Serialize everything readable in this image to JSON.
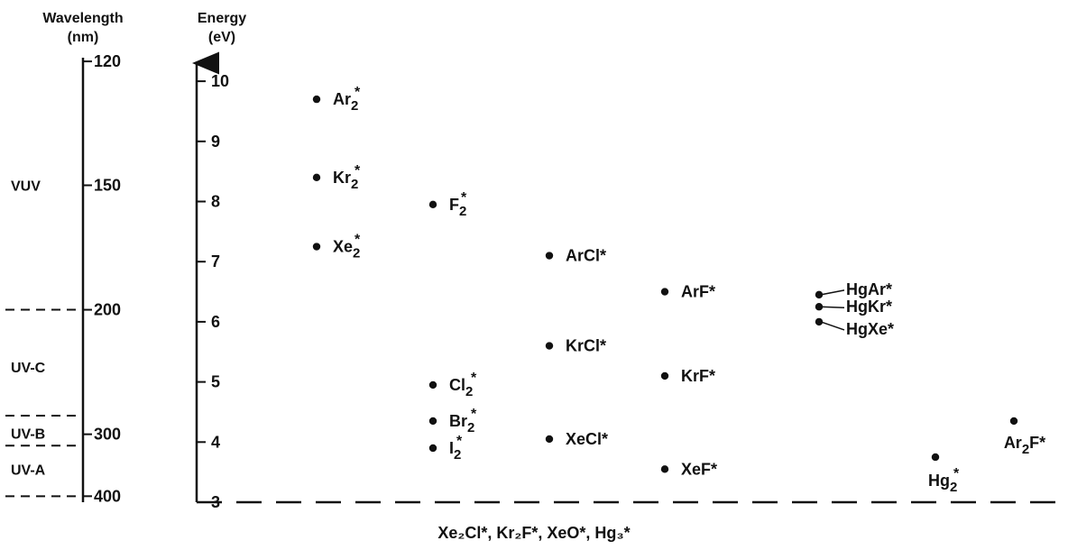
{
  "chart_data": {
    "type": "scatter",
    "title": "",
    "wavelength_axis": {
      "title_line1": "Wavelength",
      "title_line2": "(nm)",
      "ticks": [
        {
          "label": "120",
          "energy_ev": 10.33
        },
        {
          "label": "150",
          "energy_ev": 8.27
        },
        {
          "label": "200",
          "energy_ev": 6.2
        },
        {
          "label": "300",
          "energy_ev": 4.13
        },
        {
          "label": "400",
          "energy_ev": 3.1
        }
      ]
    },
    "energy_axis": {
      "title_line1": "Energy",
      "title_line2": "(eV)",
      "ylim": [
        3,
        10.4
      ],
      "ticks": [
        "3",
        "4",
        "5",
        "6",
        "7",
        "8",
        "9",
        "10"
      ]
    },
    "bands": [
      {
        "label": "VUV",
        "energy_ev": 8.27
      },
      {
        "label": "UV-C",
        "energy_ev": 5.25
      },
      {
        "label": "UV-B",
        "energy_ev": 4.15
      },
      {
        "label": "UV-A",
        "energy_ev": 3.55
      }
    ],
    "band_boundaries_ev": [
      6.2,
      4.44,
      3.94,
      3.1
    ],
    "points": [
      {
        "label": "Ar",
        "sub": "2",
        "sup": "*",
        "column": 1,
        "energy_ev": 9.7
      },
      {
        "label": "Kr",
        "sub": "2",
        "sup": "*",
        "column": 1,
        "energy_ev": 8.4
      },
      {
        "label": "Xe",
        "sub": "2",
        "sup": "*",
        "column": 1,
        "energy_ev": 7.25
      },
      {
        "label": "F",
        "sub": "2",
        "sup": "*",
        "column": 2,
        "energy_ev": 7.95
      },
      {
        "label": "Cl",
        "sub": "2",
        "sup": "*",
        "column": 2,
        "energy_ev": 4.95
      },
      {
        "label": "Br",
        "sub": "2",
        "sup": "*",
        "column": 2,
        "energy_ev": 4.35
      },
      {
        "label": "I",
        "sub": "2",
        "sup": "*",
        "column": 2,
        "energy_ev": 3.9
      },
      {
        "label": "ArCl*",
        "column": 3,
        "energy_ev": 7.1
      },
      {
        "label": "KrCl*",
        "column": 3,
        "energy_ev": 5.6
      },
      {
        "label": "XeCl*",
        "column": 3,
        "energy_ev": 4.05
      },
      {
        "label": "ArF*",
        "column": 4,
        "energy_ev": 6.5
      },
      {
        "label": "KrF*",
        "column": 4,
        "energy_ev": 5.1
      },
      {
        "label": "XeF*",
        "column": 4,
        "energy_ev": 3.55
      },
      {
        "label": "HgAr*",
        "column": 5,
        "energy_ev": 6.45
      },
      {
        "label": "HgKr*",
        "column": 5,
        "energy_ev": 6.25
      },
      {
        "label": "HgXe*",
        "column": 5,
        "energy_ev": 6.0
      },
      {
        "label": "Hg",
        "sub": "2",
        "sup": "*",
        "column": 6,
        "energy_ev": 3.75
      },
      {
        "label": "Ar",
        "sub": "2",
        "tail": "F*",
        "column": 7,
        "energy_ev": 4.35
      }
    ],
    "footnote": "Xe₂Cl*, Kr₂F*, XeO*, Hg₃*"
  }
}
